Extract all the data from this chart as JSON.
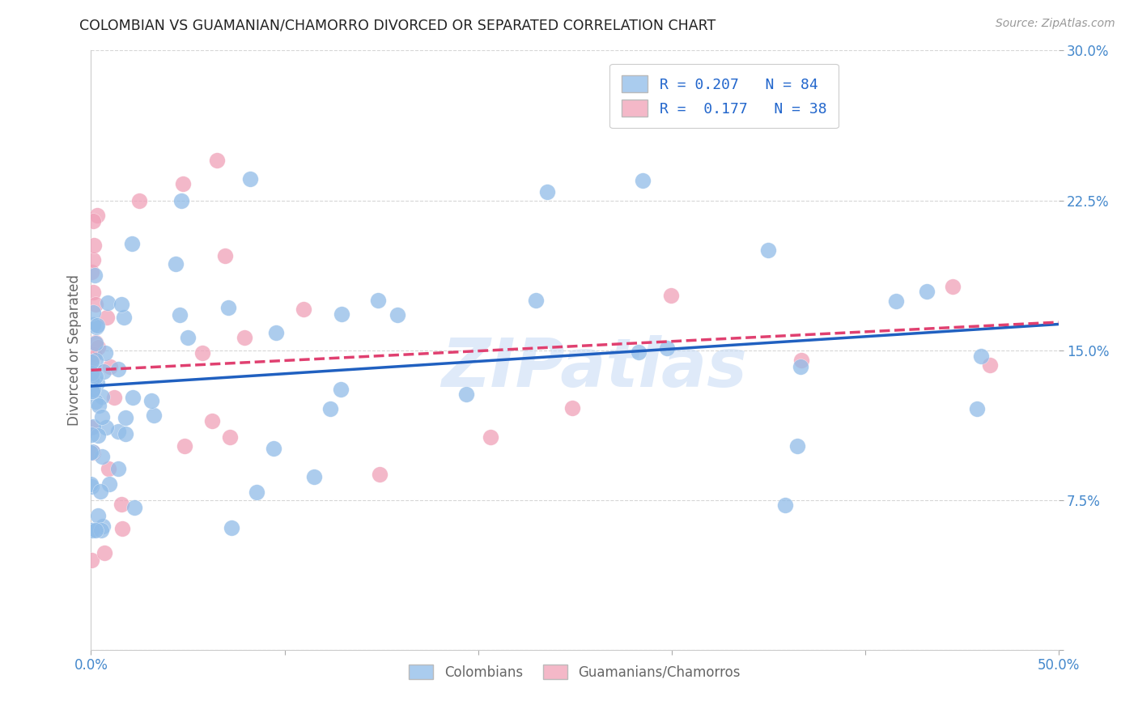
{
  "title": "COLOMBIAN VS GUAMANIAN/CHAMORRO DIVORCED OR SEPARATED CORRELATION CHART",
  "source": "Source: ZipAtlas.com",
  "ylabel": "Divorced or Separated",
  "xlim": [
    0.0,
    0.5
  ],
  "ylim": [
    0.0,
    0.3
  ],
  "xtick_positions": [
    0.0,
    0.1,
    0.2,
    0.3,
    0.4,
    0.5
  ],
  "ytick_positions": [
    0.0,
    0.075,
    0.15,
    0.225,
    0.3
  ],
  "xtick_labels": [
    "0.0%",
    "",
    "",
    "",
    "",
    "50.0%"
  ],
  "ytick_labels": [
    "",
    "7.5%",
    "15.0%",
    "22.5%",
    "30.0%"
  ],
  "watermark": "ZIPatlas",
  "colombian_color": "#90bce8",
  "guamanian_color": "#f0a0b8",
  "colombian_line_color": "#2060c0",
  "guamanian_line_color": "#e04070",
  "colombian_legend_color": "#aaccee",
  "guamanian_legend_color": "#f4b8c8",
  "background_color": "#ffffff",
  "grid_color": "#cccccc",
  "title_color": "#222222",
  "axis_tick_color": "#4488cc",
  "legend_text_color": "#2266cc",
  "source_color": "#999999",
  "ylabel_color": "#666666",
  "bottom_legend_color": "#666666",
  "col_R": 0.207,
  "col_N": 84,
  "gua_R": 0.177,
  "gua_N": 38,
  "col_intercept": 0.132,
  "col_slope": 0.062,
  "gua_intercept": 0.14,
  "gua_slope": 0.048
}
